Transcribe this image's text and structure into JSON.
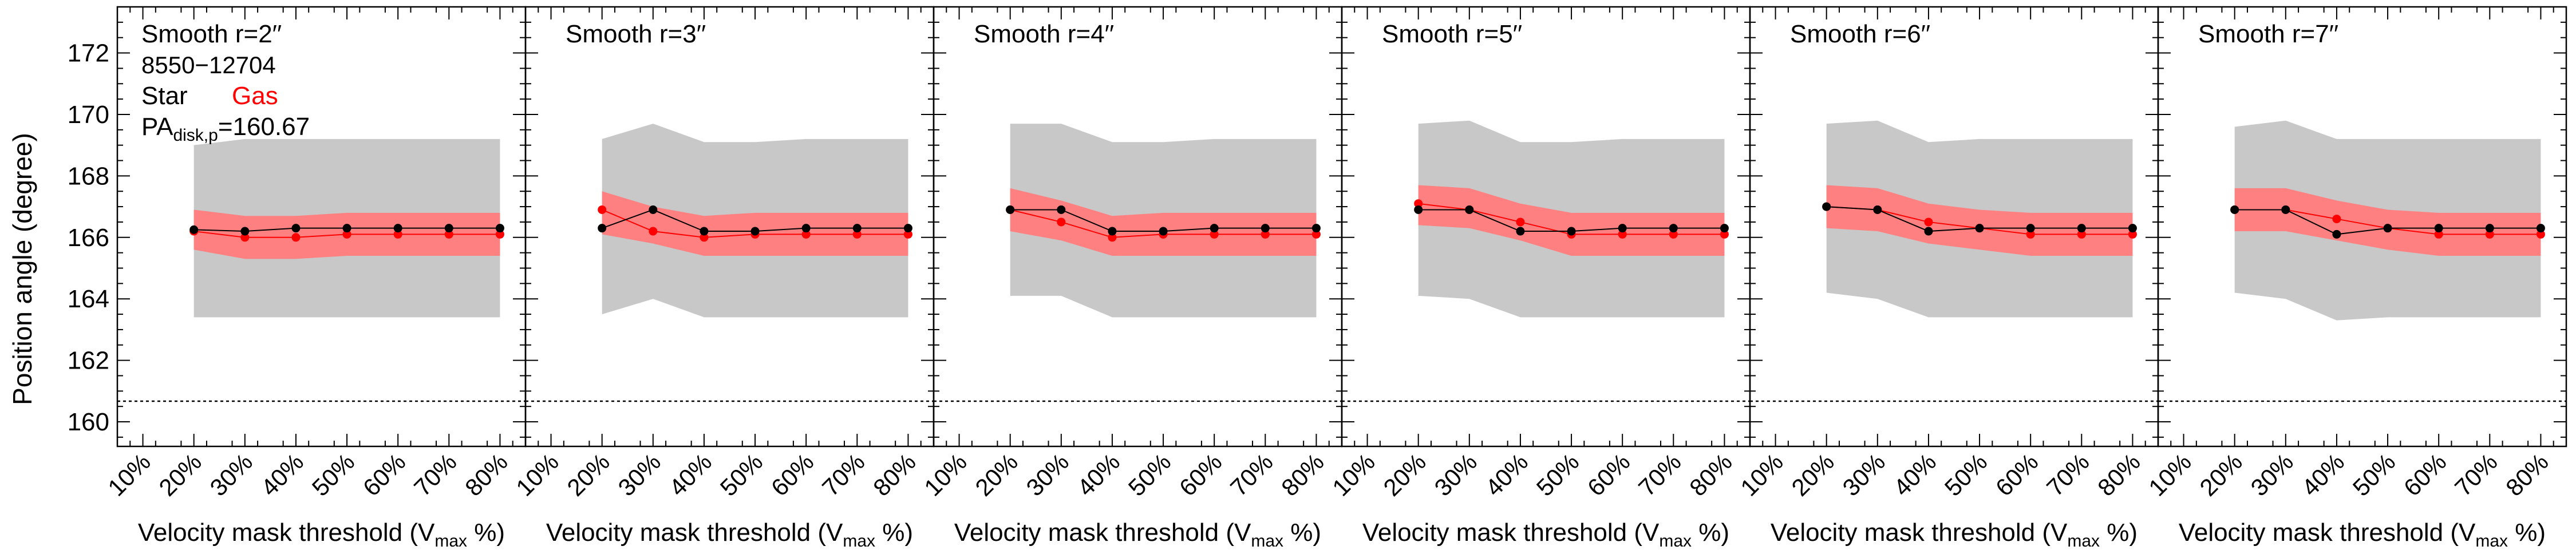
{
  "chart_data": {
    "type": "line",
    "ylabel": "Position angle (degree)",
    "xlabel_prefix": "Velocity mask threshold (V",
    "xlabel_sub": "max",
    "xlabel_suffix": " %)",
    "x_ticks": [
      "10%",
      "20%",
      "30%",
      "40%",
      "50%",
      "60%",
      "70%",
      "80%"
    ],
    "x_values": [
      10,
      20,
      30,
      40,
      50,
      60,
      70,
      80
    ],
    "xlim": [
      5,
      85
    ],
    "ylim": [
      159.2,
      173.5
    ],
    "y_ticks": [
      160,
      162,
      164,
      166,
      168,
      170,
      172
    ],
    "pa_disk_reference": 160.67,
    "info": {
      "id": "8550−12704",
      "legend_star": "Star",
      "legend_gas": "Gas",
      "pa_label_main": "PA",
      "pa_label_sub": "disk,p",
      "pa_label_value": "=160.67"
    },
    "colors": {
      "star": "#000000",
      "gas": "#ff0000",
      "gas_band": "#ff8080",
      "star_band": "#c8c8c8",
      "reference_line": "#000000"
    },
    "panels": [
      {
        "title": "Smooth r=2′′",
        "x": [
          20,
          30,
          40,
          50,
          60,
          70,
          80
        ],
        "star": [
          166.25,
          166.2,
          166.3,
          166.3,
          166.3,
          166.3,
          166.3
        ],
        "gas": [
          166.2,
          166.0,
          166.0,
          166.1,
          166.1,
          166.1,
          166.1
        ],
        "star_band_lo": [
          163.4,
          163.4,
          163.4,
          163.4,
          163.4,
          163.4,
          163.4
        ],
        "star_band_hi": [
          169.0,
          169.2,
          169.2,
          169.2,
          169.2,
          169.2,
          169.2
        ],
        "gas_band_lo": [
          165.6,
          165.3,
          165.3,
          165.4,
          165.4,
          165.4,
          165.4
        ],
        "gas_band_hi": [
          166.9,
          166.7,
          166.7,
          166.8,
          166.8,
          166.8,
          166.8
        ]
      },
      {
        "title": "Smooth r=3′′",
        "x": [
          20,
          30,
          40,
          50,
          60,
          70,
          80
        ],
        "star": [
          166.3,
          166.9,
          166.2,
          166.2,
          166.3,
          166.3,
          166.3
        ],
        "gas": [
          166.9,
          166.2,
          166.0,
          166.1,
          166.1,
          166.1,
          166.1
        ],
        "star_band_lo": [
          163.5,
          164.0,
          163.4,
          163.4,
          163.4,
          163.4,
          163.4
        ],
        "star_band_hi": [
          169.2,
          169.7,
          169.1,
          169.1,
          169.2,
          169.2,
          169.2
        ],
        "gas_band_lo": [
          166.1,
          165.8,
          165.4,
          165.4,
          165.4,
          165.4,
          165.4
        ],
        "gas_band_hi": [
          167.5,
          167.0,
          166.7,
          166.8,
          166.8,
          166.8,
          166.8
        ]
      },
      {
        "title": "Smooth r=4′′",
        "x": [
          20,
          30,
          40,
          50,
          60,
          70,
          80
        ],
        "star": [
          166.9,
          166.9,
          166.2,
          166.2,
          166.3,
          166.3,
          166.3
        ],
        "gas": [
          166.9,
          166.5,
          166.0,
          166.1,
          166.1,
          166.1,
          166.1
        ],
        "star_band_lo": [
          164.1,
          164.1,
          163.4,
          163.4,
          163.4,
          163.4,
          163.4
        ],
        "star_band_hi": [
          169.7,
          169.7,
          169.1,
          169.1,
          169.2,
          169.2,
          169.2
        ],
        "gas_band_lo": [
          166.2,
          165.9,
          165.4,
          165.4,
          165.4,
          165.4,
          165.4
        ],
        "gas_band_hi": [
          167.6,
          167.2,
          166.7,
          166.8,
          166.8,
          166.8,
          166.8
        ]
      },
      {
        "title": "Smooth r=5′′",
        "x": [
          20,
          30,
          40,
          50,
          60,
          70,
          80
        ],
        "star": [
          166.9,
          166.9,
          166.2,
          166.2,
          166.3,
          166.3,
          166.3
        ],
        "gas": [
          167.1,
          166.9,
          166.5,
          166.1,
          166.1,
          166.1,
          166.1
        ],
        "star_band_lo": [
          164.1,
          164.0,
          163.4,
          163.4,
          163.4,
          163.4,
          163.4
        ],
        "star_band_hi": [
          169.7,
          169.8,
          169.1,
          169.1,
          169.2,
          169.2,
          169.2
        ],
        "gas_band_lo": [
          166.4,
          166.3,
          165.9,
          165.4,
          165.4,
          165.4,
          165.4
        ],
        "gas_band_hi": [
          167.7,
          167.6,
          167.1,
          166.8,
          166.8,
          166.8,
          166.8
        ]
      },
      {
        "title": "Smooth r=6′′",
        "x": [
          20,
          30,
          40,
          50,
          60,
          70,
          80
        ],
        "star": [
          167.0,
          166.9,
          166.2,
          166.3,
          166.3,
          166.3,
          166.3
        ],
        "gas": [
          167.0,
          166.9,
          166.5,
          166.3,
          166.1,
          166.1,
          166.1
        ],
        "star_band_lo": [
          164.2,
          164.0,
          163.4,
          163.4,
          163.4,
          163.4,
          163.4
        ],
        "star_band_hi": [
          169.7,
          169.8,
          169.1,
          169.2,
          169.2,
          169.2,
          169.2
        ],
        "gas_band_lo": [
          166.3,
          166.2,
          165.8,
          165.6,
          165.4,
          165.4,
          165.4
        ],
        "gas_band_hi": [
          167.7,
          167.6,
          167.1,
          166.9,
          166.8,
          166.8,
          166.8
        ]
      },
      {
        "title": "Smooth r=7′′",
        "x": [
          20,
          30,
          40,
          50,
          60,
          70,
          80
        ],
        "star": [
          166.9,
          166.9,
          166.1,
          166.3,
          166.3,
          166.3,
          166.3
        ],
        "gas": [
          166.9,
          166.9,
          166.6,
          166.3,
          166.1,
          166.1,
          166.1
        ],
        "star_band_lo": [
          164.2,
          164.0,
          163.3,
          163.4,
          163.4,
          163.4,
          163.4
        ],
        "star_band_hi": [
          169.6,
          169.8,
          169.2,
          169.2,
          169.2,
          169.2,
          169.2
        ],
        "gas_band_lo": [
          166.2,
          166.2,
          165.9,
          165.6,
          165.4,
          165.4,
          165.4
        ],
        "gas_band_hi": [
          167.6,
          167.6,
          167.2,
          166.9,
          166.8,
          166.8,
          166.8
        ]
      }
    ]
  }
}
